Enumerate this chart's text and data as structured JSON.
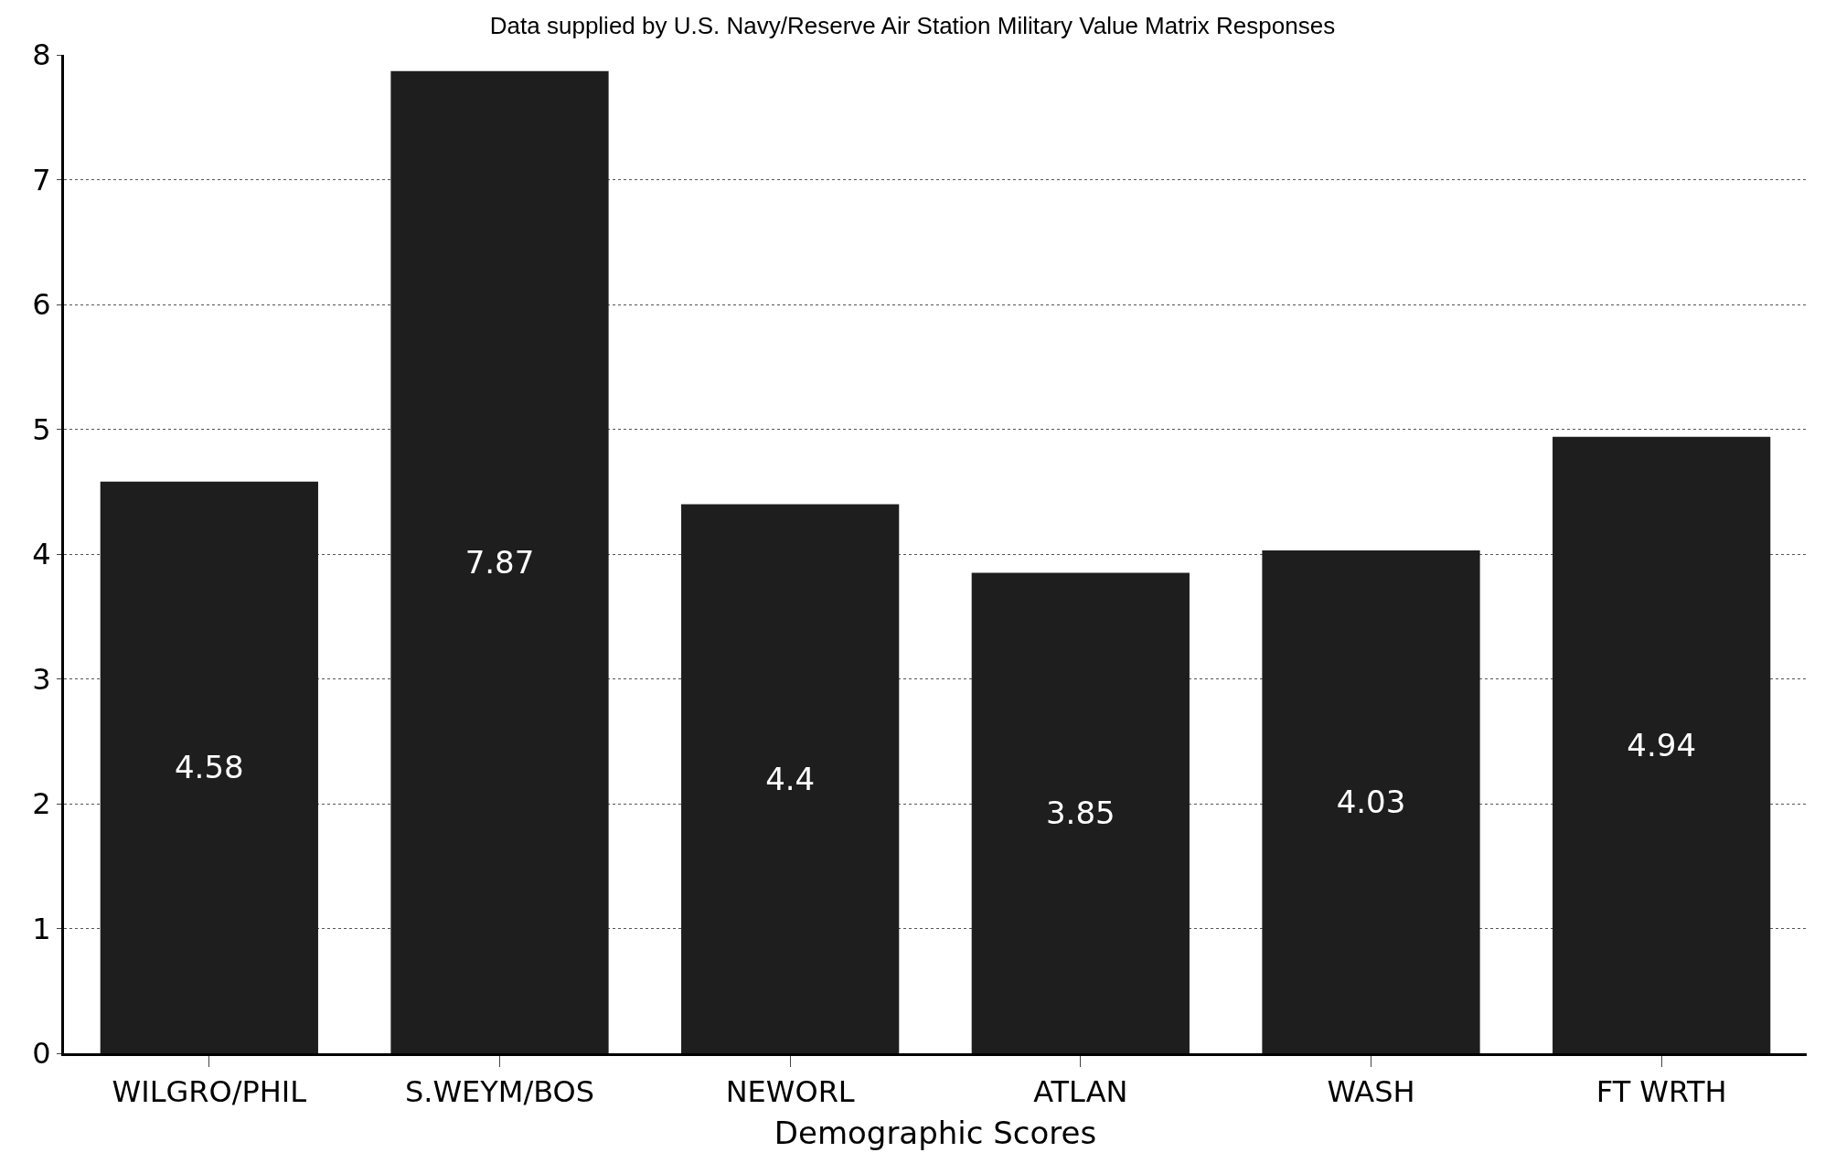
{
  "chart_data": {
    "type": "bar",
    "title": "Data supplied by U.S. Navy/Reserve Air Station Military Value Matrix Responses",
    "xlabel": "Demographic Scores",
    "categories": [
      "WILGRO/PHIL",
      "S.WEYM/BOS",
      "NEWORL",
      "ATLAN",
      "WASH",
      "FT WRTH"
    ],
    "values": [
      4.58,
      7.87,
      4.4,
      3.85,
      4.03,
      4.94
    ],
    "color": "#1e1e1e",
    "ylim": [
      0,
      8
    ],
    "yticks": [
      0,
      1,
      2,
      3,
      4,
      5,
      6,
      7,
      8
    ],
    "grid": "y",
    "data_labels": true
  }
}
